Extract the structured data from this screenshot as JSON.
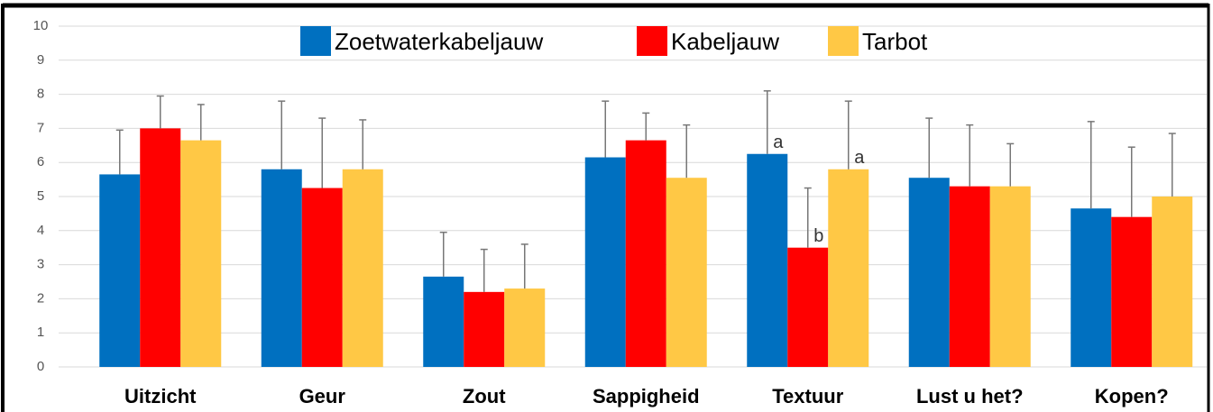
{
  "chart_data": {
    "type": "bar",
    "categories": [
      "Uitzicht",
      "Geur",
      "Zout",
      "Sappigheid",
      "Textuur",
      "Lust u het?",
      "Kopen?"
    ],
    "series": [
      {
        "name": "Zoetwaterkabeljauw",
        "color": "#0070C0",
        "values": [
          5.65,
          5.8,
          2.65,
          6.15,
          6.25,
          5.55,
          4.65
        ],
        "errors": [
          1.3,
          2.0,
          1.3,
          1.65,
          1.85,
          1.75,
          2.55
        ]
      },
      {
        "name": "Kabeljauw",
        "color": "#FF0000",
        "values": [
          7.0,
          5.25,
          2.2,
          6.65,
          3.5,
          5.3,
          4.4
        ],
        "errors": [
          0.95,
          2.05,
          1.25,
          0.8,
          1.75,
          1.8,
          2.05
        ]
      },
      {
        "name": "Tarbot",
        "color": "#FFC845",
        "values": [
          6.65,
          5.8,
          2.3,
          5.55,
          5.8,
          5.3,
          5.0
        ],
        "errors": [
          1.05,
          1.45,
          1.3,
          1.55,
          2.0,
          1.25,
          1.85
        ]
      }
    ],
    "annotations": [
      "a",
      "b",
      "a"
    ],
    "ylim": [
      0,
      10
    ],
    "yticks": [
      0,
      1,
      2,
      3,
      4,
      5,
      6,
      7,
      8,
      9,
      10
    ],
    "grid": true
  }
}
